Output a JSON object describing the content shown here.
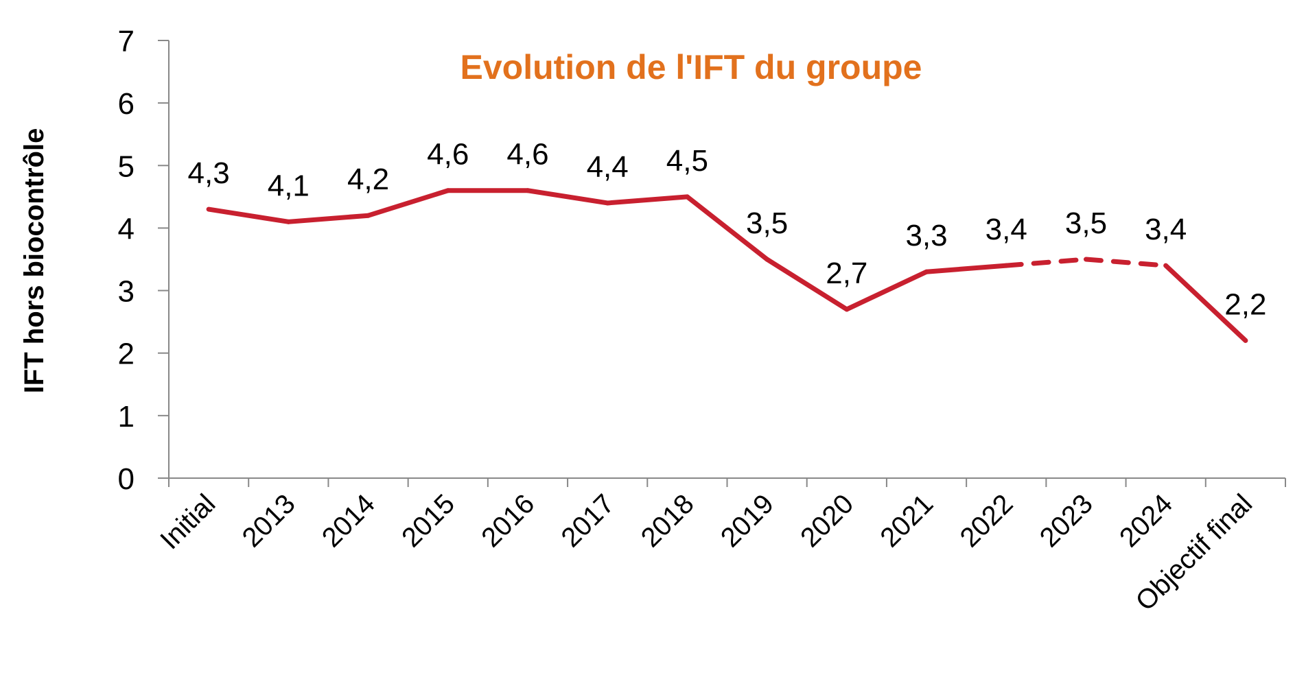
{
  "chart_data": {
    "type": "line",
    "title": "Evolution de l'IFT du groupe",
    "title_color": "#E2711D",
    "ylabel": "IFT  hors biocontrôle",
    "xlabel": "",
    "ylim": [
      0,
      7
    ],
    "yticks": [
      "0",
      "1",
      "2",
      "3",
      "4",
      "5",
      "6",
      "7"
    ],
    "categories": [
      "Initial",
      "2013",
      "2014",
      "2015",
      "2016",
      "2017",
      "2018",
      "2019",
      "2020",
      "2021",
      "2022",
      "2023",
      "2024",
      "Objectif final"
    ],
    "series": [
      {
        "values": [
          4.3,
          4.1,
          4.2,
          4.6,
          4.6,
          4.4,
          4.5,
          3.5,
          2.7,
          3.3,
          3.4,
          3.5,
          3.4,
          2.2
        ],
        "labels": [
          "4,3",
          "4,1",
          "4,2",
          "4,6",
          "4,6",
          "4,4",
          "4,5",
          "3,5",
          "2,7",
          "3,3",
          "3,4",
          "3,5",
          "3,4",
          "2,2"
        ],
        "color": "#C8202F",
        "dashed_segments": [
          [
            10,
            11
          ],
          [
            11,
            12
          ]
        ]
      }
    ],
    "grid": false,
    "legend": "none"
  }
}
